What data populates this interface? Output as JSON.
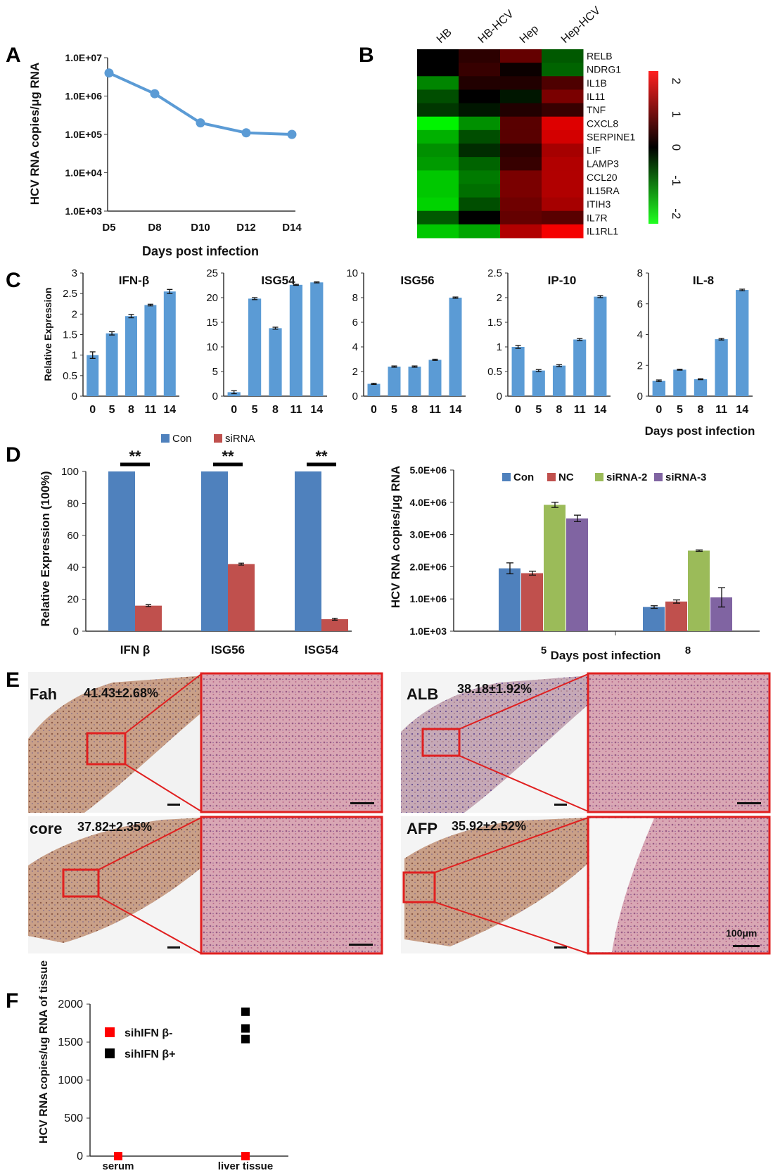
{
  "panel_labels": {
    "A": "A",
    "B": "B",
    "C": "C",
    "D": "D",
    "E": "E",
    "F": "F"
  },
  "colors": {
    "line_blue": "#5b9bd5",
    "bar_con": "#4f81bd",
    "bar_sirna": "#c0504d",
    "bar_siRNA2": "#9bbb59",
    "bar_siRNA3": "#8064a2",
    "heat_high": "#ff0000",
    "heat_low": "#00ff00",
    "heat_mid": "#000000",
    "highlight_red": "#e02020",
    "scatter_red": "#ff0000",
    "scatter_black": "#000000"
  },
  "chart_data": [
    {
      "id": "A",
      "type": "line",
      "categories": [
        "D5",
        "D8",
        "D10",
        "D12",
        "D14"
      ],
      "series": [
        {
          "values": [
            4000000,
            1150000,
            200000,
            110000,
            100000
          ]
        }
      ],
      "xlabel": "Days post infection",
      "ylabel": "HCV RNA copies/μg RNA",
      "yscale": "log",
      "yticks": [
        "1.0E+03",
        "1.0E+04",
        "1.0E+05",
        "1.0E+06",
        "1.0E+07"
      ],
      "ylim": [
        1000,
        10000000
      ]
    },
    {
      "id": "B",
      "type": "heatmap",
      "columns": [
        "HB",
        "HB-HCV",
        "Hep",
        "Hep-HCV"
      ],
      "rows": [
        "RELB",
        "NDRG1",
        "IL1B",
        "IL11",
        "TNF",
        "CXCL8",
        "SERPINE1",
        "LIF",
        "LAMP3",
        "CCL20",
        "IL15RA",
        "ITIH3",
        "IL7R",
        "IL1RL1"
      ],
      "values": [
        [
          0.0,
          0.4,
          0.9,
          -0.8
        ],
        [
          0.0,
          0.5,
          0.1,
          -0.9
        ],
        [
          -1.2,
          0.3,
          0.3,
          0.7
        ],
        [
          -0.7,
          0.0,
          -0.2,
          1.1
        ],
        [
          -0.5,
          -0.2,
          0.3,
          0.5
        ],
        [
          -2.2,
          -1.3,
          0.8,
          2.0
        ],
        [
          -1.6,
          -0.7,
          0.8,
          1.9
        ],
        [
          -1.3,
          -0.4,
          0.4,
          1.5
        ],
        [
          -1.4,
          -0.9,
          0.5,
          1.6
        ],
        [
          -1.8,
          -1.1,
          1.1,
          1.6
        ],
        [
          -1.8,
          -1.0,
          1.1,
          1.6
        ],
        [
          -1.9,
          -0.7,
          1.0,
          1.5
        ],
        [
          -0.8,
          0.0,
          0.9,
          0.8
        ],
        [
          -1.8,
          -1.5,
          1.6,
          2.2
        ]
      ],
      "colorbar_ticks": [
        "2",
        "1",
        "0",
        "-1",
        "-2"
      ],
      "colorbar_range": [
        -2.3,
        2.3
      ]
    },
    {
      "id": "C1",
      "type": "bar",
      "title": "IFN-β",
      "ylabel": "Relative Expression",
      "categories": [
        "0",
        "5",
        "8",
        "11",
        "14"
      ],
      "values": [
        1.0,
        1.53,
        1.95,
        2.22,
        2.55
      ],
      "errors": [
        0.08,
        0.04,
        0.04,
        0.02,
        0.05
      ],
      "ylim": [
        0,
        3
      ],
      "yticks": [
        "0",
        "0.5",
        "1",
        "1.5",
        "2",
        "2.5",
        "3"
      ]
    },
    {
      "id": "C2",
      "type": "bar",
      "title": "ISG54",
      "categories": [
        "0",
        "5",
        "8",
        "11",
        "14"
      ],
      "values": [
        0.8,
        19.8,
        13.8,
        22.6,
        23.1
      ],
      "errors": [
        0.3,
        0.2,
        0.2,
        0.1,
        0.1
      ],
      "ylim": [
        0,
        25
      ],
      "yticks": [
        "0",
        "5",
        "10",
        "15",
        "20",
        "25"
      ]
    },
    {
      "id": "C3",
      "type": "bar",
      "title": "ISG56",
      "categories": [
        "0",
        "5",
        "8",
        "11",
        "14"
      ],
      "values": [
        1.0,
        2.4,
        2.4,
        2.95,
        8.0
      ],
      "errors": [
        0.05,
        0.05,
        0.05,
        0.05,
        0.05
      ],
      "ylim": [
        0,
        10
      ],
      "yticks": [
        "0",
        "2",
        "4",
        "6",
        "8",
        "10"
      ]
    },
    {
      "id": "C4",
      "type": "bar",
      "title": "IP-10",
      "categories": [
        "0",
        "5",
        "8",
        "11",
        "14"
      ],
      "values": [
        1.0,
        0.52,
        0.62,
        1.15,
        2.02
      ],
      "errors": [
        0.03,
        0.02,
        0.02,
        0.02,
        0.02
      ],
      "ylim": [
        0,
        2.5
      ],
      "yticks": [
        "0",
        "0.5",
        "1",
        "1.5",
        "2",
        "2.5"
      ]
    },
    {
      "id": "C5",
      "type": "bar",
      "title": "IL-8",
      "xlabel": "Days post infection",
      "categories": [
        "0",
        "5",
        "8",
        "11",
        "14"
      ],
      "values": [
        1.0,
        1.72,
        1.1,
        3.7,
        6.9
      ],
      "errors": [
        0.05,
        0.03,
        0.03,
        0.05,
        0.05
      ],
      "ylim": [
        0,
        8
      ],
      "yticks": [
        "0",
        "2",
        "4",
        "6",
        "8"
      ]
    },
    {
      "id": "D1",
      "type": "bar",
      "ylabel": "Relative Expression (100%)",
      "categories": [
        "IFN β",
        "ISG56",
        "ISG54"
      ],
      "series": [
        {
          "name": "Con",
          "values": [
            100,
            100,
            100
          ]
        },
        {
          "name": "siRNA",
          "values": [
            16,
            42,
            7.5
          ]
        }
      ],
      "annotations": [
        "**",
        "**",
        "**"
      ],
      "ylim": [
        0,
        100
      ],
      "yticks": [
        "0",
        "20",
        "40",
        "60",
        "80",
        "100"
      ]
    },
    {
      "id": "D2",
      "type": "bar",
      "ylabel": "HCV RNA copies/μg RNA",
      "xlabel": "Days post infection",
      "categories": [
        "5",
        "8"
      ],
      "series": [
        {
          "name": "Con",
          "values": [
            1950000,
            750000
          ],
          "errors": [
            170000,
            40000
          ]
        },
        {
          "name": "NC",
          "values": [
            1800000,
            920000
          ],
          "errors": [
            60000,
            50000
          ]
        },
        {
          "name": "siRNA-2",
          "values": [
            3920000,
            2500000
          ],
          "errors": [
            80000,
            20000
          ]
        },
        {
          "name": "siRNA-3",
          "values": [
            3500000,
            1050000
          ],
          "errors": [
            100000,
            300000
          ]
        }
      ],
      "yticks": [
        "1.0E+03",
        "1.0E+06",
        "2.0E+06",
        "3.0E+06",
        "4.0E+06",
        "5.0E+06"
      ],
      "ylim": [
        0,
        5000000
      ]
    },
    {
      "id": "F",
      "type": "scatter",
      "ylabel": "HCV RNA copies/ug RNA of tissue",
      "categories": [
        "serum",
        "liver tissue"
      ],
      "series": [
        {
          "name": "sihIFN β-",
          "points": [
            [
              "serum",
              0
            ],
            [
              "liver tissue",
              0
            ]
          ]
        },
        {
          "name": "sihIFN β+",
          "points": [
            [
              "liver tissue",
              1900
            ],
            [
              "liver tissue",
              1680
            ],
            [
              "liver tissue",
              1540
            ]
          ]
        }
      ],
      "ylim": [
        0,
        2000
      ],
      "yticks": [
        "0",
        "500",
        "1000",
        "1500",
        "2000"
      ]
    }
  ],
  "tissue_panels": [
    {
      "marker": "Fah",
      "value": "41.43±2.68%"
    },
    {
      "marker": "ALB",
      "value": "38.18±1.92%"
    },
    {
      "marker": "core",
      "value": "37.82±2.35%"
    },
    {
      "marker": "AFP",
      "value": "35.92±2.52%"
    }
  ],
  "scale_bar_label": "100μm"
}
